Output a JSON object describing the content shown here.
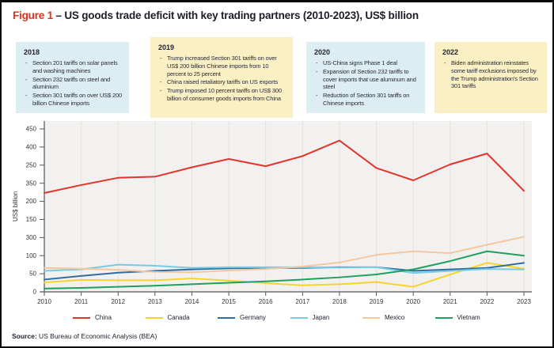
{
  "header": {
    "figure_label": "Figure 1",
    "dash": "–",
    "title": "US goods trade deficit with key trading partners (2010-2023), US$ billion"
  },
  "annotations": [
    {
      "year": "2018",
      "tone": "blue",
      "bullets": [
        "Section 201 tariffs on solar panels and washing machines",
        "Section 232 tariffs on steel and aluminium",
        "Section 301 tariffs on over US$ 200 billion Chinese imports"
      ]
    },
    {
      "year": "2019",
      "tone": "yellow",
      "bullets": [
        "Trump increased Section 301 tariffs on over US$ 200 billion Chinese imports from 10 percent to 25 percent",
        "China raised retaliatory tariffs on US exports",
        "Trump imposed 10 percent tariffs on US$ 300 billion of consumer goods imports from China"
      ]
    },
    {
      "year": "2020",
      "tone": "blue",
      "bullets": [
        "US-China signs Phase 1 deal",
        "Expansion of Section 232 tariffs to cover imports that use aluminum and steel",
        "Reduction of Section 301 tariffs on Chinese imports"
      ]
    },
    {
      "year": "2022",
      "tone": "yellow",
      "bullets": [
        "Biden administration reinstates some tariff exclusions imposed by the Trump administration's Section 301 tariffs"
      ]
    }
  ],
  "chart_data": {
    "type": "line",
    "x": [
      2010,
      2011,
      2012,
      2013,
      2014,
      2015,
      2016,
      2017,
      2018,
      2019,
      2020,
      2021,
      2022,
      2023
    ],
    "ylabel": "US$ billion",
    "grid": "vertical-only",
    "legend_position": "bottom",
    "y_axis": {
      "true_range": [
        0,
        450
      ],
      "tick_step": 50,
      "tick_labels_top_to_bottom": [
        "450",
        "400",
        "250",
        "350",
        "200",
        "150",
        "300",
        "100",
        "50",
        "0"
      ]
    },
    "series": [
      {
        "name": "China",
        "color": "#e1352b",
        "values": [
          273,
          295,
          315,
          318,
          344,
          367,
          347,
          375,
          418,
          342,
          308,
          352,
          382,
          279
        ]
      },
      {
        "name": "Canada",
        "color": "#f6d42a",
        "values": [
          26,
          33,
          32,
          32,
          37,
          31,
          24,
          18,
          21,
          27,
          14,
          48,
          80,
          64
        ]
      },
      {
        "name": "Germany",
        "color": "#2e6da4",
        "values": [
          34,
          44,
          53,
          58,
          62,
          65,
          66,
          66,
          68,
          68,
          58,
          62,
          66,
          80
        ]
      },
      {
        "name": "Japan",
        "color": "#79cbdf",
        "values": [
          58,
          62,
          75,
          72,
          66,
          68,
          68,
          68,
          67,
          68,
          52,
          58,
          63,
          62
        ]
      },
      {
        "name": "Mexico",
        "color": "#f5c79c",
        "values": [
          66,
          64,
          61,
          55,
          54,
          59,
          63,
          70,
          81,
          102,
          112,
          107,
          130,
          152
        ]
      },
      {
        "name": "Vietnam",
        "color": "#1ea05e",
        "values": [
          9,
          11,
          14,
          17,
          21,
          25,
          29,
          34,
          40,
          48,
          62,
          85,
          112,
          100
        ]
      }
    ]
  },
  "footer": {
    "source_label": "Source:",
    "source_text": " US Bureau of Economic Analysis (BEA)"
  },
  "colors": {
    "figure_label_red": "#e0301e",
    "box_blue": "#dceef1",
    "box_yellow": "#faf0c4",
    "plot_bg": "#f2f1ef",
    "gridline": "#e3e1de",
    "axis": "#55555a",
    "tick_text": "#333338"
  }
}
